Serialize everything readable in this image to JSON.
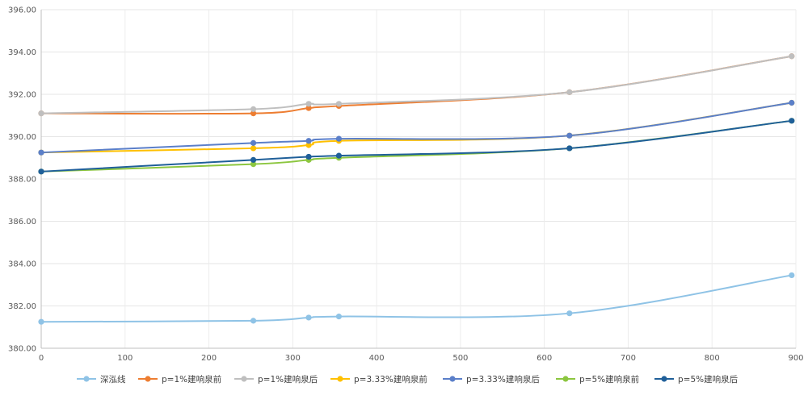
{
  "chart_data": {
    "type": "line",
    "title": "",
    "xlabel": "",
    "ylabel": "",
    "xlim": [
      0,
      900
    ],
    "ylim": [
      380,
      396
    ],
    "xticks": [
      0,
      100,
      200,
      300,
      400,
      500,
      600,
      700,
      800,
      900
    ],
    "yticks": [
      380,
      382,
      384,
      386,
      388,
      390,
      392,
      394,
      396
    ],
    "xtick_labels": [
      "0",
      "100",
      "200",
      "300",
      "400",
      "500",
      "600",
      "700",
      "800",
      "900"
    ],
    "ytick_labels": [
      "380.00",
      "382.00",
      "384.00",
      "386.00",
      "388.00",
      "390.00",
      "392.00",
      "394.00",
      "396.00"
    ],
    "grid": true,
    "legend_position": "bottom",
    "x": [
      0,
      253,
      319,
      355,
      630,
      895
    ],
    "series": [
      {
        "name": "深泓线",
        "color": "#8fc3e6",
        "values": [
          381.25,
          381.3,
          381.45,
          381.5,
          381.65,
          383.45
        ]
      },
      {
        "name": "p=1%建响泉前",
        "color": "#ed7d31",
        "values": [
          391.1,
          391.1,
          391.35,
          391.45,
          392.1,
          393.8
        ]
      },
      {
        "name": "p=1%建响泉后",
        "color": "#bfbfbf",
        "values": [
          391.1,
          391.3,
          391.55,
          391.55,
          392.1,
          393.8
        ]
      },
      {
        "name": "p=3.33%建响泉前",
        "color": "#ffc000",
        "values": [
          389.25,
          389.45,
          389.6,
          389.8,
          390.05,
          391.6
        ]
      },
      {
        "name": "p=3.33%建响泉后",
        "color": "#5b7fc9",
        "values": [
          389.25,
          389.7,
          389.8,
          389.9,
          390.05,
          391.6
        ]
      },
      {
        "name": "p=5%建响泉前",
        "color": "#8cc63f",
        "values": [
          388.35,
          388.7,
          388.9,
          389.0,
          389.45,
          390.75
        ]
      },
      {
        "name": "p=5%建响泉后",
        "color": "#1f5f99",
        "values": [
          388.35,
          388.9,
          389.05,
          389.1,
          389.45,
          390.75
        ]
      }
    ]
  }
}
